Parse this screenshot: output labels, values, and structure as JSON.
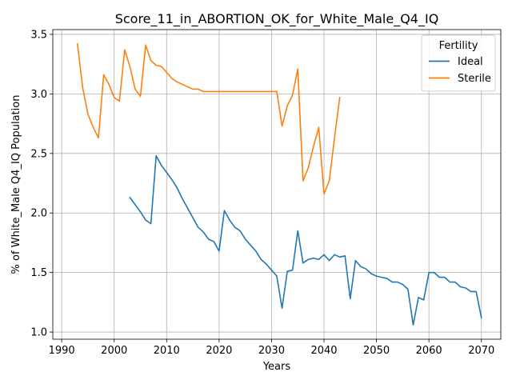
{
  "chart_data": {
    "type": "line",
    "title": "Score_11_in_ABORTION_OK_for_White_Male_Q4_IQ",
    "xlabel": "Years",
    "ylabel": "% of White_Male Q4_IQ Population",
    "xlim": [
      1988.3,
      2073.7
    ],
    "ylim": [
      0.94,
      3.54
    ],
    "xticks": [
      1990,
      2000,
      2010,
      2020,
      2030,
      2040,
      2050,
      2060,
      2070
    ],
    "yticks": [
      1.0,
      1.5,
      2.0,
      2.5,
      3.0,
      3.5
    ],
    "ytick_labels": [
      "1.0",
      "1.5",
      "2.0",
      "2.5",
      "3.0",
      "3.5"
    ],
    "grid": true,
    "legend": {
      "title": "Fertility",
      "placement": "top-right"
    },
    "series": [
      {
        "name": "Ideal",
        "color": "#1f77b4",
        "points": [
          [
            2003,
            2.13
          ],
          [
            2004,
            2.07
          ],
          [
            2005,
            2.01
          ],
          [
            2006,
            1.94
          ],
          [
            2007,
            1.91
          ],
          [
            2008,
            2.48
          ],
          [
            2009,
            2.4
          ],
          [
            2010,
            2.34
          ],
          [
            2011,
            2.28
          ],
          [
            2012,
            2.21
          ],
          [
            2013,
            2.12
          ],
          [
            2014,
            2.04
          ],
          [
            2015,
            1.96
          ],
          [
            2016,
            1.88
          ],
          [
            2017,
            1.84
          ],
          [
            2018,
            1.78
          ],
          [
            2019,
            1.76
          ],
          [
            2020,
            1.68
          ],
          [
            2021,
            2.02
          ],
          [
            2022,
            1.94
          ],
          [
            2023,
            1.88
          ],
          [
            2024,
            1.85
          ],
          [
            2025,
            1.78
          ],
          [
            2026,
            1.73
          ],
          [
            2027,
            1.68
          ],
          [
            2028,
            1.61
          ],
          [
            2029,
            1.57
          ],
          [
            2030,
            1.52
          ],
          [
            2031,
            1.47
          ],
          [
            2032,
            1.2
          ],
          [
            2033,
            1.51
          ],
          [
            2034,
            1.52
          ],
          [
            2035,
            1.85
          ],
          [
            2036,
            1.58
          ],
          [
            2037,
            1.61
          ],
          [
            2038,
            1.62
          ],
          [
            2039,
            1.61
          ],
          [
            2040,
            1.65
          ],
          [
            2041,
            1.6
          ],
          [
            2042,
            1.65
          ],
          [
            2043,
            1.63
          ],
          [
            2044,
            1.64
          ],
          [
            2045,
            1.28
          ],
          [
            2046,
            1.6
          ],
          [
            2047,
            1.55
          ],
          [
            2048,
            1.53
          ],
          [
            2049,
            1.49
          ],
          [
            2050,
            1.47
          ],
          [
            2051,
            1.46
          ],
          [
            2052,
            1.45
          ],
          [
            2053,
            1.42
          ],
          [
            2054,
            1.42
          ],
          [
            2055,
            1.4
          ],
          [
            2056,
            1.36
          ],
          [
            2057,
            1.06
          ],
          [
            2058,
            1.29
          ],
          [
            2059,
            1.27
          ],
          [
            2060,
            1.5
          ],
          [
            2061,
            1.5
          ],
          [
            2062,
            1.46
          ],
          [
            2063,
            1.46
          ],
          [
            2064,
            1.42
          ],
          [
            2065,
            1.42
          ],
          [
            2066,
            1.38
          ],
          [
            2067,
            1.37
          ],
          [
            2068,
            1.34
          ],
          [
            2069,
            1.34
          ],
          [
            2070,
            1.12
          ]
        ]
      },
      {
        "name": "Sterile",
        "color": "#ff7f0e",
        "points": [
          [
            1993,
            3.42
          ],
          [
            1994,
            3.05
          ],
          [
            1995,
            2.83
          ],
          [
            1996,
            2.72
          ],
          [
            1997,
            2.63
          ],
          [
            1998,
            3.16
          ],
          [
            1999,
            3.08
          ],
          [
            2000,
            2.97
          ],
          [
            2001,
            2.94
          ],
          [
            2002,
            3.37
          ],
          [
            2003,
            3.23
          ],
          [
            2004,
            3.04
          ],
          [
            2005,
            2.98
          ],
          [
            2006,
            3.41
          ],
          [
            2007,
            3.28
          ],
          [
            2008,
            3.24
          ],
          [
            2009,
            3.23
          ],
          [
            2010,
            3.18
          ],
          [
            2011,
            3.13
          ],
          [
            2012,
            3.1
          ],
          [
            2013,
            3.08
          ],
          [
            2014,
            3.06
          ],
          [
            2015,
            3.04
          ],
          [
            2016,
            3.04
          ],
          [
            2017,
            3.02
          ],
          [
            2018,
            3.02
          ],
          [
            2019,
            3.02
          ],
          [
            2020,
            3.02
          ],
          [
            2021,
            3.02
          ],
          [
            2022,
            3.02
          ],
          [
            2023,
            3.02
          ],
          [
            2024,
            3.02
          ],
          [
            2025,
            3.02
          ],
          [
            2026,
            3.02
          ],
          [
            2027,
            3.02
          ],
          [
            2028,
            3.02
          ],
          [
            2029,
            3.02
          ],
          [
            2030,
            3.02
          ],
          [
            2031,
            3.02
          ],
          [
            2032,
            2.73
          ],
          [
            2033,
            2.9
          ],
          [
            2034,
            2.99
          ],
          [
            2035,
            3.21
          ],
          [
            2036,
            2.27
          ],
          [
            2037,
            2.38
          ],
          [
            2038,
            2.56
          ],
          [
            2039,
            2.72
          ],
          [
            2040,
            2.16
          ],
          [
            2041,
            2.27
          ],
          [
            2042,
            2.63
          ],
          [
            2043,
            2.97
          ]
        ]
      }
    ]
  }
}
